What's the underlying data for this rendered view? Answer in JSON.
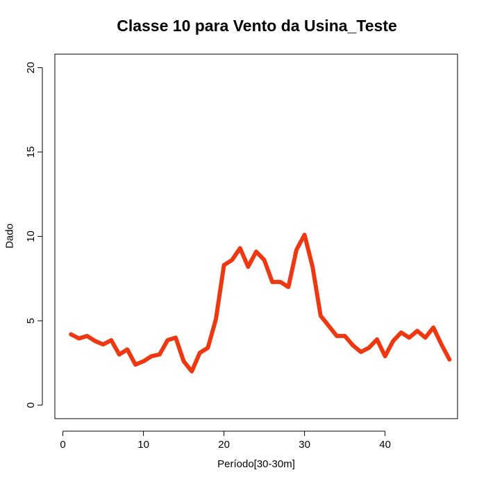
{
  "chart_data": {
    "type": "line",
    "title": "Classe  10 para Vento da Usina_Teste",
    "xlabel": "Período[30-30m]",
    "ylabel": "Dado",
    "xlim": [
      -1,
      49
    ],
    "ylim": [
      -0.8,
      20.8
    ],
    "xticks": [
      0,
      10,
      20,
      30,
      40
    ],
    "yticks": [
      0,
      5,
      10,
      15,
      20
    ],
    "grid": false,
    "series": [
      {
        "color": "#ee3811",
        "x": [
          1,
          2,
          3,
          4,
          5,
          6,
          7,
          8,
          9,
          10,
          11,
          12,
          13,
          14,
          15,
          16,
          17,
          18,
          19,
          20,
          21,
          22,
          23,
          24,
          25,
          26,
          27,
          28,
          29,
          30,
          31,
          32,
          33,
          34,
          35,
          36,
          37,
          38,
          39,
          40,
          41,
          42,
          43,
          44,
          45,
          46,
          47,
          48
        ],
        "y": [
          4.2,
          3.95,
          4.1,
          3.8,
          3.6,
          3.85,
          3.0,
          3.3,
          2.4,
          2.6,
          2.9,
          3.0,
          3.85,
          4.0,
          2.6,
          2.0,
          3.1,
          3.4,
          5.1,
          8.3,
          8.6,
          9.3,
          8.2,
          9.1,
          8.6,
          7.3,
          7.3,
          7.0,
          9.2,
          10.1,
          8.2,
          5.3,
          4.7,
          4.1,
          4.1,
          3.55,
          3.15,
          3.4,
          3.9,
          2.9,
          3.8,
          4.3,
          4.0,
          4.4,
          4.0,
          4.6,
          3.6,
          2.7
        ]
      }
    ]
  }
}
